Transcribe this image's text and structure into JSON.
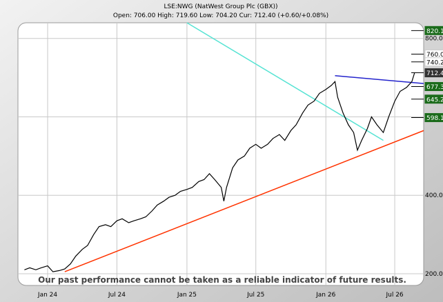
{
  "chart_data": {
    "type": "line",
    "title": "LSE:NWG (NatWest Group Plc (GBX))",
    "subtitle": "Open: 706.00 High: 719.60 Low: 704.20 Cur: 712.40 (+0.60/+0.08%)",
    "footer": "Our past performance cannot be taken as a reliable indicator of future results.",
    "x_ticks": [
      "Jan 24",
      "Jul 24",
      "Jan 25",
      "Jul 25",
      "Jan 26",
      "Jul 26"
    ],
    "y_ticks": [
      200,
      400,
      600,
      800
    ],
    "y_tick_labels": [
      "200.0",
      "400.0",
      "600.0",
      "800.0"
    ],
    "ylim": [
      170,
      840
    ],
    "xlim": [
      "2023-10-15",
      "2026-09-15"
    ],
    "grid": true,
    "price_series": [
      {
        "x": "2023-11-01",
        "y": 210
      },
      {
        "x": "2023-11-15",
        "y": 215
      },
      {
        "x": "2023-12-01",
        "y": 210
      },
      {
        "x": "2023-12-15",
        "y": 215
      },
      {
        "x": "2024-01-01",
        "y": 220
      },
      {
        "x": "2024-01-15",
        "y": 205
      },
      {
        "x": "2024-02-01",
        "y": 208
      },
      {
        "x": "2024-02-15",
        "y": 212
      },
      {
        "x": "2024-03-01",
        "y": 225
      },
      {
        "x": "2024-03-15",
        "y": 245
      },
      {
        "x": "2024-04-01",
        "y": 262
      },
      {
        "x": "2024-04-15",
        "y": 272
      },
      {
        "x": "2024-05-01",
        "y": 300
      },
      {
        "x": "2024-05-15",
        "y": 320
      },
      {
        "x": "2024-06-01",
        "y": 325
      },
      {
        "x": "2024-06-15",
        "y": 320
      },
      {
        "x": "2024-07-01",
        "y": 335
      },
      {
        "x": "2024-07-15",
        "y": 340
      },
      {
        "x": "2024-08-01",
        "y": 330
      },
      {
        "x": "2024-08-15",
        "y": 335
      },
      {
        "x": "2024-09-01",
        "y": 340
      },
      {
        "x": "2024-09-15",
        "y": 345
      },
      {
        "x": "2024-10-01",
        "y": 360
      },
      {
        "x": "2024-10-15",
        "y": 375
      },
      {
        "x": "2024-11-01",
        "y": 385
      },
      {
        "x": "2024-11-15",
        "y": 395
      },
      {
        "x": "2024-12-01",
        "y": 400
      },
      {
        "x": "2024-12-15",
        "y": 410
      },
      {
        "x": "2025-01-01",
        "y": 415
      },
      {
        "x": "2025-01-15",
        "y": 420
      },
      {
        "x": "2025-02-01",
        "y": 435
      },
      {
        "x": "2025-02-15",
        "y": 440
      },
      {
        "x": "2025-03-01",
        "y": 455
      },
      {
        "x": "2025-03-15",
        "y": 440
      },
      {
        "x": "2025-04-01",
        "y": 420
      },
      {
        "x": "2025-04-08",
        "y": 385
      },
      {
        "x": "2025-04-15",
        "y": 420
      },
      {
        "x": "2025-05-01",
        "y": 470
      },
      {
        "x": "2025-05-15",
        "y": 490
      },
      {
        "x": "2025-06-01",
        "y": 500
      },
      {
        "x": "2025-06-15",
        "y": 520
      },
      {
        "x": "2025-07-01",
        "y": 530
      },
      {
        "x": "2025-07-15",
        "y": 520
      },
      {
        "x": "2025-08-01",
        "y": 530
      },
      {
        "x": "2025-08-15",
        "y": 545
      },
      {
        "x": "2025-09-01",
        "y": 555
      },
      {
        "x": "2025-09-15",
        "y": 540
      },
      {
        "x": "2025-10-01",
        "y": 565
      },
      {
        "x": "2025-10-15",
        "y": 580
      },
      {
        "x": "2025-11-01",
        "y": 610
      },
      {
        "x": "2025-11-15",
        "y": 630
      },
      {
        "x": "2025-12-01",
        "y": 640
      },
      {
        "x": "2025-12-15",
        "y": 660
      },
      {
        "x": "2026-01-01",
        "y": 670
      },
      {
        "x": "2026-01-15",
        "y": 680
      },
      {
        "x": "2026-01-25",
        "y": 690
      },
      {
        "x": "2026-02-01",
        "y": 650
      },
      {
        "x": "2026-02-15",
        "y": 610
      },
      {
        "x": "2026-03-01",
        "y": 580
      },
      {
        "x": "2026-03-15",
        "y": 560
      },
      {
        "x": "2026-03-25",
        "y": 515
      },
      {
        "x": "2026-04-05",
        "y": 540
      },
      {
        "x": "2026-04-20",
        "y": 570
      },
      {
        "x": "2026-05-01",
        "y": 600
      },
      {
        "x": "2026-05-15",
        "y": 580
      },
      {
        "x": "2026-06-01",
        "y": 560
      },
      {
        "x": "2026-06-15",
        "y": 600
      },
      {
        "x": "2026-07-01",
        "y": 640
      },
      {
        "x": "2026-07-15",
        "y": 665
      },
      {
        "x": "2026-08-01",
        "y": 675
      },
      {
        "x": "2026-08-15",
        "y": 690
      },
      {
        "x": "2026-08-22",
        "y": 712.4
      }
    ],
    "trend_lines": [
      {
        "color": "#ff3300",
        "x0": "2024-02-15",
        "y0": 205,
        "x1": "2026-09-15",
        "y1": 565
      },
      {
        "color": "#55e3d3",
        "x0": "2025-01-01",
        "y0": 840,
        "x1": "2026-06-01",
        "y1": 540
      },
      {
        "color": "#2222cc",
        "x0": "2026-01-25",
        "y0": 705,
        "x1": "2026-09-15",
        "y1": 685
      }
    ],
    "price_labels": [
      {
        "value": 820.1,
        "text": "820.1",
        "bg": "#1a6b1a",
        "fg": "#ffffff"
      },
      {
        "value": 760,
        "text": "760.0",
        "bg": "#ffffff",
        "fg": "#000000"
      },
      {
        "value": 740.2,
        "text": "740.2",
        "bg": "#ffffff",
        "fg": "#000000"
      },
      {
        "value": 712.4,
        "text": "712.4",
        "bg": "#333333",
        "fg": "#ffffff"
      },
      {
        "value": 677.3,
        "text": "677.3",
        "bg": "#1a6b1a",
        "fg": "#ffffff"
      },
      {
        "value": 645.2,
        "text": "645.2",
        "bg": "#1a6b1a",
        "fg": "#ffffff"
      },
      {
        "value": 598.1,
        "text": "598.1",
        "bg": "#1a6b1a",
        "fg": "#ffffff"
      }
    ],
    "colors": {
      "price": "#000000",
      "grid": "#c8c8c8",
      "background": "#ffffff"
    }
  }
}
